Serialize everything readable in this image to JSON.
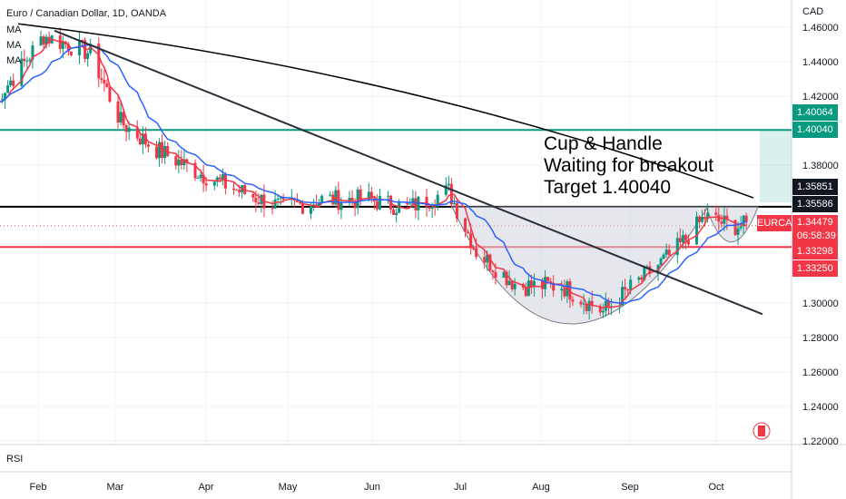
{
  "header": {
    "title": "Euro / Canadian Dollar, 1D, OANDA",
    "indicators": [
      "MA",
      "MA",
      "MA"
    ],
    "currency": "CAD",
    "rsi_label": "RSI"
  },
  "annotation": {
    "line1": "Cup & Handle",
    "line2": "Waiting for breakout",
    "line3": "Target 1.40040"
  },
  "price_labels": {
    "target": "1.40064",
    "target2": "1.40040",
    "resistance": "1.35851",
    "resistance2": "1.35586",
    "ticker": "EURCAD",
    "current": "1.34479",
    "countdown": "06:58:39",
    "support": "1.33298",
    "support2": "1.33250"
  },
  "colors": {
    "green_line": "#089981",
    "red_line": "#f23645",
    "black_line": "#000000",
    "ma_fast": "#f23645",
    "ma_mid": "#2962ff",
    "ma_slow": "#000000",
    "up_candle": "#089981",
    "down_candle": "#f23645",
    "cup_fill": "#d1d4dc"
  },
  "chart_data": {
    "type": "candlestick",
    "title": "Euro / Canadian Dollar, 1D, OANDA",
    "y_ticks": [
      "1.46000",
      "1.44000",
      "1.42000",
      "1.38000",
      "1.30000",
      "1.28000",
      "1.26000",
      "1.24000",
      "1.22000"
    ],
    "x_ticks": [
      "Feb",
      "Mar",
      "Apr",
      "May",
      "Jun",
      "Jul",
      "Aug",
      "Sep",
      "Oct"
    ],
    "ylim": [
      1.215,
      1.467
    ],
    "horizontal_levels": [
      {
        "name": "target",
        "value": 1.4004
      },
      {
        "name": "resistance",
        "value": 1.35586
      },
      {
        "name": "support",
        "value": 1.3325
      }
    ],
    "price_path_approx": [
      {
        "date": "2025-01-15",
        "close": 1.415
      },
      {
        "date": "2025-01-25",
        "close": 1.435
      },
      {
        "date": "2025-02-03",
        "close": 1.455
      },
      {
        "date": "2025-02-20",
        "close": 1.445
      },
      {
        "date": "2025-03-03",
        "close": 1.405
      },
      {
        "date": "2025-03-15",
        "close": 1.39
      },
      {
        "date": "2025-04-01",
        "close": 1.375
      },
      {
        "date": "2025-04-15",
        "close": 1.365
      },
      {
        "date": "2025-05-01",
        "close": 1.355
      },
      {
        "date": "2025-05-15",
        "close": 1.36
      },
      {
        "date": "2025-06-01",
        "close": 1.36
      },
      {
        "date": "2025-06-15",
        "close": 1.355
      },
      {
        "date": "2025-06-30",
        "close": 1.365
      },
      {
        "date": "2025-07-10",
        "close": 1.33
      },
      {
        "date": "2025-07-25",
        "close": 1.31
      },
      {
        "date": "2025-08-10",
        "close": 1.31
      },
      {
        "date": "2025-08-25",
        "close": 1.295
      },
      {
        "date": "2025-09-05",
        "close": 1.31
      },
      {
        "date": "2025-09-20",
        "close": 1.33
      },
      {
        "date": "2025-10-01",
        "close": 1.35
      },
      {
        "date": "2025-10-10",
        "close": 1.345
      },
      {
        "date": "2025-10-16",
        "close": 1.34479
      }
    ]
  }
}
